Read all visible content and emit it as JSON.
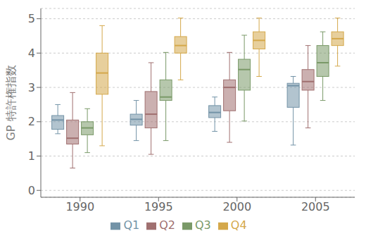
{
  "chart_data": {
    "type": "box",
    "ylabel": "GP 特許権指数",
    "categories": [
      "1990",
      "1995",
      "2000",
      "2005"
    ],
    "series": [
      {
        "name": "Q1",
        "color": "#7393a7",
        "values": [
          {
            "whislo": 1.65,
            "q1": 1.78,
            "med": 2.05,
            "q3": 2.18,
            "whishi": 2.5
          },
          {
            "whislo": 1.45,
            "q1": 1.9,
            "med": 2.07,
            "q3": 2.22,
            "whishi": 2.62
          },
          {
            "whislo": 1.72,
            "q1": 2.12,
            "med": 2.27,
            "q3": 2.47,
            "whishi": 2.72
          },
          {
            "whislo": 1.32,
            "q1": 2.42,
            "med": 3.05,
            "q3": 3.12,
            "whishi": 3.32
          }
        ]
      },
      {
        "name": "Q2",
        "color": "#a07070",
        "values": [
          {
            "whislo": 0.65,
            "q1": 1.35,
            "med": 1.52,
            "q3": 2.05,
            "whishi": 2.85
          },
          {
            "whislo": 1.05,
            "q1": 1.82,
            "med": 2.22,
            "q3": 2.88,
            "whishi": 3.72
          },
          {
            "whislo": 1.4,
            "q1": 2.32,
            "med": 3.0,
            "q3": 3.22,
            "whishi": 4.02
          },
          {
            "whislo": 1.82,
            "q1": 2.92,
            "med": 3.17,
            "q3": 3.52,
            "whishi": 4.22
          }
        ]
      },
      {
        "name": "Q3",
        "color": "#7a9968",
        "values": [
          {
            "whislo": 1.1,
            "q1": 1.62,
            "med": 1.82,
            "q3": 2.0,
            "whishi": 2.38
          },
          {
            "whislo": 1.45,
            "q1": 2.62,
            "med": 2.72,
            "q3": 3.22,
            "whishi": 4.02
          },
          {
            "whislo": 2.02,
            "q1": 2.92,
            "med": 3.52,
            "q3": 3.82,
            "whishi": 4.52
          },
          {
            "whislo": 2.62,
            "q1": 3.32,
            "med": 3.72,
            "q3": 4.22,
            "whishi": 4.62
          }
        ]
      },
      {
        "name": "Q4",
        "color": "#d4a84b",
        "values": [
          {
            "whislo": 1.3,
            "q1": 2.8,
            "med": 3.42,
            "q3": 4.0,
            "whishi": 4.8
          },
          {
            "whislo": 3.22,
            "q1": 4.0,
            "med": 4.22,
            "q3": 4.48,
            "whishi": 5.02
          },
          {
            "whislo": 3.32,
            "q1": 4.12,
            "med": 4.37,
            "q3": 4.62,
            "whishi": 5.02
          },
          {
            "whislo": 3.62,
            "q1": 4.22,
            "med": 4.42,
            "q3": 4.62,
            "whishi": 5.02
          }
        ]
      }
    ],
    "ylim": [
      -0.2,
      5.3
    ],
    "yticks": [
      0,
      1,
      2,
      3,
      4,
      5
    ],
    "grid": true,
    "legend": "bottom"
  }
}
